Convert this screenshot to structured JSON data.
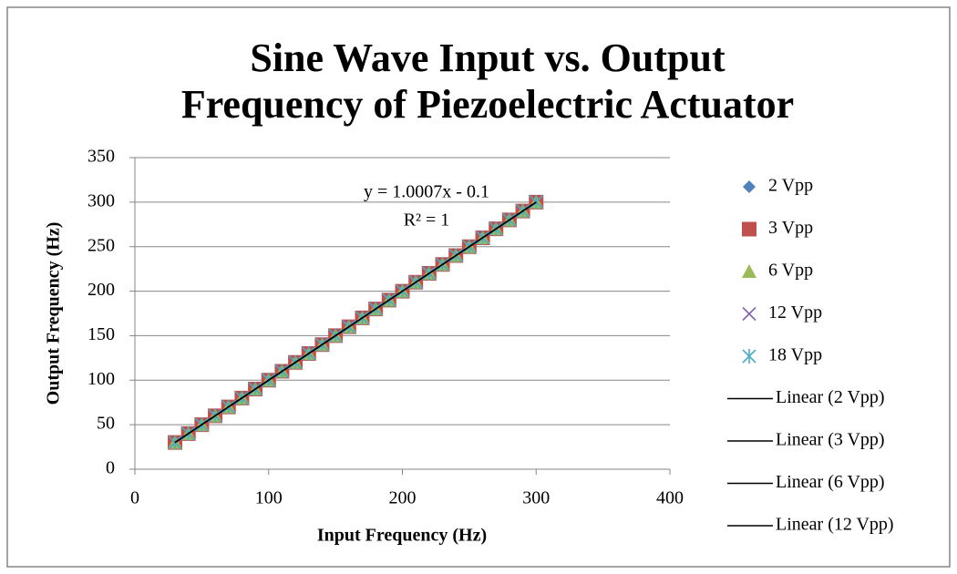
{
  "chart_data": {
    "type": "scatter",
    "title": "Sine Wave Input vs. Output Frequency of Piezoelectric Actuator",
    "x_label": "Input Frequency (Hz)",
    "y_label": "Output Frequency (Hz)",
    "annotations": [
      "y = 1.0007x - 0.1",
      "R² = 1"
    ],
    "x": [
      30,
      40,
      50,
      60,
      70,
      80,
      90,
      100,
      110,
      120,
      130,
      140,
      150,
      160,
      170,
      180,
      190,
      200,
      210,
      220,
      230,
      240,
      250,
      260,
      270,
      280,
      290,
      300
    ],
    "series": [
      {
        "name": "2 Vpp",
        "color": "#4F81BD",
        "marker": "diamond",
        "values": [
          30,
          40,
          50,
          60,
          70,
          80,
          90,
          100,
          110,
          120,
          130,
          140,
          150,
          160,
          170,
          180,
          190,
          200,
          210,
          220,
          230,
          240,
          250,
          260,
          270,
          280,
          290,
          300
        ]
      },
      {
        "name": "3 Vpp",
        "color": "#C0504D",
        "marker": "square",
        "values": [
          30,
          40,
          50,
          60,
          70,
          80,
          90,
          100,
          110,
          120,
          130,
          140,
          150,
          160,
          170,
          180,
          190,
          200,
          210,
          220,
          230,
          240,
          250,
          260,
          270,
          280,
          290,
          300
        ]
      },
      {
        "name": "6 Vpp",
        "color": "#9BBB59",
        "marker": "triangle",
        "values": [
          30,
          40,
          50,
          60,
          70,
          80,
          90,
          100,
          110,
          120,
          130,
          140,
          150,
          160,
          170,
          180,
          190,
          200,
          210,
          220,
          230,
          240,
          250,
          260,
          270,
          280,
          290,
          300
        ]
      },
      {
        "name": "12 Vpp",
        "color": "#8064A2",
        "marker": "x",
        "values": [
          30,
          40,
          50,
          60,
          70,
          80,
          90,
          100,
          110,
          120,
          130,
          140,
          150,
          160,
          170,
          180,
          190,
          200,
          210,
          220,
          230,
          240,
          250,
          260,
          270,
          280,
          290,
          300
        ]
      },
      {
        "name": "18 Vpp",
        "color": "#4BACC6",
        "marker": "star",
        "values": [
          30,
          40,
          50,
          60,
          70,
          80,
          90,
          100,
          110,
          120,
          130,
          140,
          150,
          160,
          170,
          180,
          190,
          200,
          210,
          220,
          230,
          240,
          250,
          260,
          270,
          280,
          290,
          300
        ]
      }
    ],
    "trendlines": [
      {
        "name": "Linear (2 Vpp)",
        "color": "#000000",
        "x": [
          30,
          300
        ],
        "values": [
          30,
          300
        ]
      },
      {
        "name": "Linear (3 Vpp)",
        "color": "#000000",
        "x": [
          30,
          300
        ],
        "values": [
          30,
          300
        ]
      },
      {
        "name": "Linear (6 Vpp)",
        "color": "#000000",
        "x": [
          30,
          300
        ],
        "values": [
          30,
          300
        ]
      },
      {
        "name": "Linear (12 Vpp)",
        "color": "#000000",
        "x": [
          30,
          300
        ],
        "values": [
          30,
          300
        ]
      }
    ],
    "xlim": [
      0,
      400
    ],
    "xticks": [
      0,
      100,
      200,
      300,
      400
    ],
    "ylim": [
      0,
      350
    ],
    "yticks": [
      0,
      50,
      100,
      150,
      200,
      250,
      300,
      350
    ],
    "grid": true,
    "legend": "right"
  }
}
